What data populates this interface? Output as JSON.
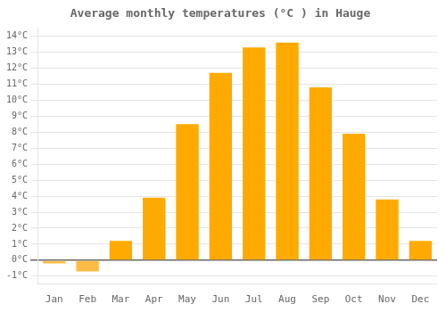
{
  "chart_data": {
    "type": "bar",
    "title": "Average monthly temperatures (°C ) in Hauge",
    "categories": [
      "Jan",
      "Feb",
      "Mar",
      "Apr",
      "May",
      "Jun",
      "Jul",
      "Aug",
      "Sep",
      "Oct",
      "Nov",
      "Dec"
    ],
    "values": [
      -0.2,
      -0.7,
      1.2,
      3.9,
      8.5,
      11.7,
      13.3,
      13.6,
      10.8,
      7.9,
      3.8,
      1.2
    ],
    "colors": [
      "#FFBB44",
      "#FFBB44",
      "#FFAA00",
      "#FFAA00",
      "#FFAA00",
      "#FFAA00",
      "#FFAA00",
      "#FFAA00",
      "#FFAA00",
      "#FFAA00",
      "#FFAA00",
      "#FFAA00"
    ],
    "ylim": [
      -1.5,
      14.5
    ],
    "yticks": [
      {
        "value": -1,
        "label": "-1°C"
      },
      {
        "value": 0,
        "label": "0°C"
      },
      {
        "value": 1,
        "label": "1°C"
      },
      {
        "value": 2,
        "label": "2°C"
      },
      {
        "value": 3,
        "label": "3°C"
      },
      {
        "value": 4,
        "label": "4°C"
      },
      {
        "value": 5,
        "label": "5°C"
      },
      {
        "value": 6,
        "label": "6°C"
      },
      {
        "value": 7,
        "label": "7°C"
      },
      {
        "value": 8,
        "label": "8°C"
      },
      {
        "value": 9,
        "label": "9°C"
      },
      {
        "value": 10,
        "label": "10°C"
      },
      {
        "value": 11,
        "label": "11°C"
      },
      {
        "value": 12,
        "label": "12°C"
      },
      {
        "value": 13,
        "label": "13°C"
      },
      {
        "value": 14,
        "label": "14°C"
      }
    ],
    "grid": true
  }
}
